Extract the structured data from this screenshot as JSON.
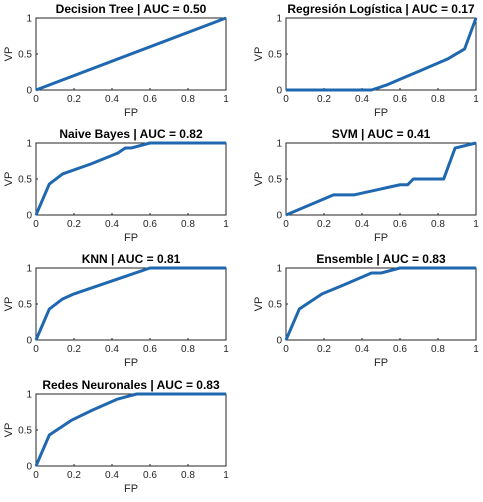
{
  "colors": {
    "line": "#1f68b0",
    "axis": "#262626",
    "background": "#ffffff"
  },
  "chart_data": [
    {
      "type": "line",
      "title": "Decision Tree | AUC = 0.50",
      "xlabel": "FP",
      "ylabel": "VP",
      "xlim": [
        0,
        1
      ],
      "ylim": [
        0,
        1
      ],
      "grid": false,
      "xticks": [
        "0",
        "0.2",
        "0.4",
        "0.6",
        "0.8",
        "1"
      ],
      "yticks": [
        "0",
        "0.5",
        "1"
      ],
      "x": [
        0,
        1
      ],
      "y": [
        0,
        1
      ]
    },
    {
      "type": "line",
      "title": "Regresión Logística | AUC = 0.17",
      "xlabel": "FP",
      "ylabel": "VP",
      "xlim": [
        0,
        1
      ],
      "ylim": [
        0,
        1
      ],
      "grid": false,
      "xticks": [
        "0",
        "0.2",
        "0.4",
        "0.6",
        "0.8",
        "1"
      ],
      "yticks": [
        "0",
        "0.5",
        "1"
      ],
      "x": [
        0,
        0.45,
        0.53,
        0.6,
        0.7,
        0.85,
        0.94,
        1
      ],
      "y": [
        0,
        0,
        0.07,
        0.15,
        0.26,
        0.43,
        0.57,
        1
      ]
    },
    {
      "type": "line",
      "title": "Naive Bayes | AUC = 0.82",
      "xlabel": "FP",
      "ylabel": "VP",
      "xlim": [
        0,
        1
      ],
      "ylim": [
        0,
        1
      ],
      "grid": false,
      "xticks": [
        "0",
        "0.2",
        "0.4",
        "0.6",
        "0.8",
        "1"
      ],
      "yticks": [
        "0",
        "0.5",
        "1"
      ],
      "x": [
        0,
        0.07,
        0.14,
        0.29,
        0.43,
        0.47,
        0.5,
        0.6,
        1
      ],
      "y": [
        0,
        0.43,
        0.57,
        0.71,
        0.86,
        0.93,
        0.93,
        1,
        1
      ]
    },
    {
      "type": "line",
      "title": "SVM | AUC = 0.41",
      "xlabel": "FP",
      "ylabel": "VP",
      "xlim": [
        0,
        1
      ],
      "ylim": [
        0,
        1
      ],
      "grid": false,
      "xticks": [
        "0",
        "0.2",
        "0.4",
        "0.6",
        "0.8",
        "1"
      ],
      "yticks": [
        "0",
        "0.5",
        "1"
      ],
      "x": [
        0,
        0.25,
        0.36,
        0.6,
        0.64,
        0.67,
        0.83,
        0.89,
        1
      ],
      "y": [
        0,
        0.28,
        0.28,
        0.42,
        0.42,
        0.5,
        0.5,
        0.93,
        1
      ]
    },
    {
      "type": "line",
      "title": "KNN | AUC = 0.81",
      "xlabel": "FP",
      "ylabel": "VP",
      "xlim": [
        0,
        1
      ],
      "ylim": [
        0,
        1
      ],
      "grid": false,
      "xticks": [
        "0",
        "0.2",
        "0.4",
        "0.6",
        "0.8",
        "1"
      ],
      "yticks": [
        "0",
        "0.5",
        "1"
      ],
      "x": [
        0,
        0.07,
        0.14,
        0.2,
        0.3,
        0.4,
        0.5,
        0.6,
        1
      ],
      "y": [
        0,
        0.43,
        0.57,
        0.64,
        0.73,
        0.82,
        0.91,
        1,
        1
      ]
    },
    {
      "type": "line",
      "title": "Ensemble | AUC = 0.83",
      "xlabel": "FP",
      "ylabel": "VP",
      "xlim": [
        0,
        1
      ],
      "ylim": [
        0,
        1
      ],
      "grid": false,
      "xticks": [
        "0",
        "0.2",
        "0.4",
        "0.6",
        "0.8",
        "1"
      ],
      "yticks": [
        "0",
        "0.5",
        "1"
      ],
      "x": [
        0,
        0.07,
        0.19,
        0.3,
        0.45,
        0.5,
        0.6,
        1
      ],
      "y": [
        0,
        0.43,
        0.64,
        0.76,
        0.93,
        0.93,
        1,
        1
      ]
    },
    {
      "type": "line",
      "title": "Redes Neuronales | AUC = 0.83",
      "xlabel": "FP",
      "ylabel": "VP",
      "xlim": [
        0,
        1
      ],
      "ylim": [
        0,
        1
      ],
      "grid": false,
      "xticks": [
        "0",
        "0.2",
        "0.4",
        "0.6",
        "0.8",
        "1"
      ],
      "yticks": [
        "0",
        "0.5",
        "1"
      ],
      "x": [
        0,
        0.07,
        0.19,
        0.3,
        0.43,
        0.53,
        0.6,
        1
      ],
      "y": [
        0,
        0.43,
        0.64,
        0.78,
        0.93,
        1,
        1,
        1
      ]
    }
  ]
}
